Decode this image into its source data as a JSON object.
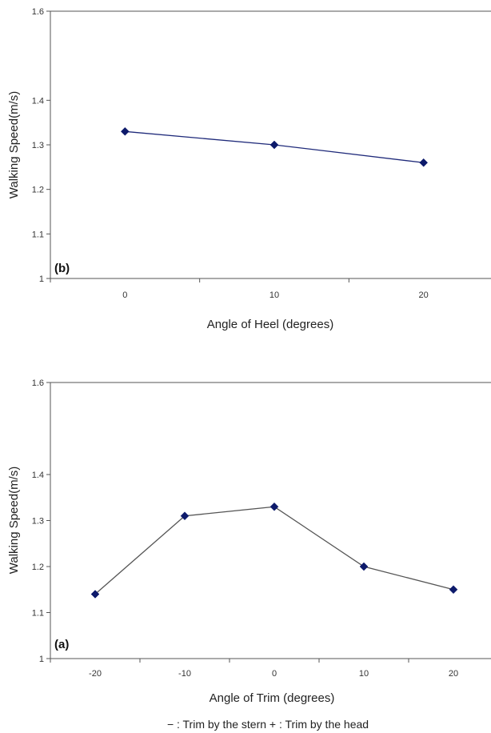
{
  "chart_data": [
    {
      "type": "line",
      "panel_label": "(b)",
      "xlabel": "Angle of Heel (degrees)",
      "ylabel": "Walking Speed(m/s)",
      "ylim": [
        1,
        1.6
      ],
      "yticks": [
        "1",
        "1.1",
        "1.2",
        "1.3",
        "1.4",
        "1.6"
      ],
      "yticks_values": [
        1,
        1.1,
        1.2,
        1.3,
        1.4,
        1.6
      ],
      "xticks": [
        "0",
        "10",
        "20"
      ],
      "xticks_values": [
        0,
        10,
        20
      ],
      "xlim": [
        -5,
        25
      ],
      "grid": false,
      "series": [
        {
          "x": [
            0,
            10,
            20
          ],
          "values": [
            1.33,
            1.3,
            1.26
          ],
          "color": "#1f2a7a",
          "marker": "diamond",
          "marker_color": "#0d1a6b"
        }
      ]
    },
    {
      "type": "line",
      "panel_label": "(a)",
      "xlabel": "Angle of Trim (degrees)",
      "ylabel": "Walking Speed(m/s)",
      "ylim": [
        1,
        1.6
      ],
      "yticks": [
        "1",
        "1.1",
        "1.2",
        "1.3",
        "1.4",
        "1.6"
      ],
      "yticks_values": [
        1,
        1.1,
        1.2,
        1.3,
        1.4,
        1.6
      ],
      "xticks": [
        "-20",
        "-10",
        "0",
        "10",
        "20"
      ],
      "xticks_values": [
        -20,
        -10,
        0,
        10,
        20
      ],
      "xlim": [
        -25,
        25
      ],
      "grid": false,
      "note": "− : Trim by the stern + : Trim by the head",
      "series": [
        {
          "x": [
            -20,
            -10,
            0,
            10,
            20
          ],
          "values": [
            1.14,
            1.31,
            1.33,
            1.2,
            1.15
          ],
          "color": "#555555",
          "marker": "diamond",
          "marker_color": "#0d1a6b"
        }
      ]
    }
  ]
}
